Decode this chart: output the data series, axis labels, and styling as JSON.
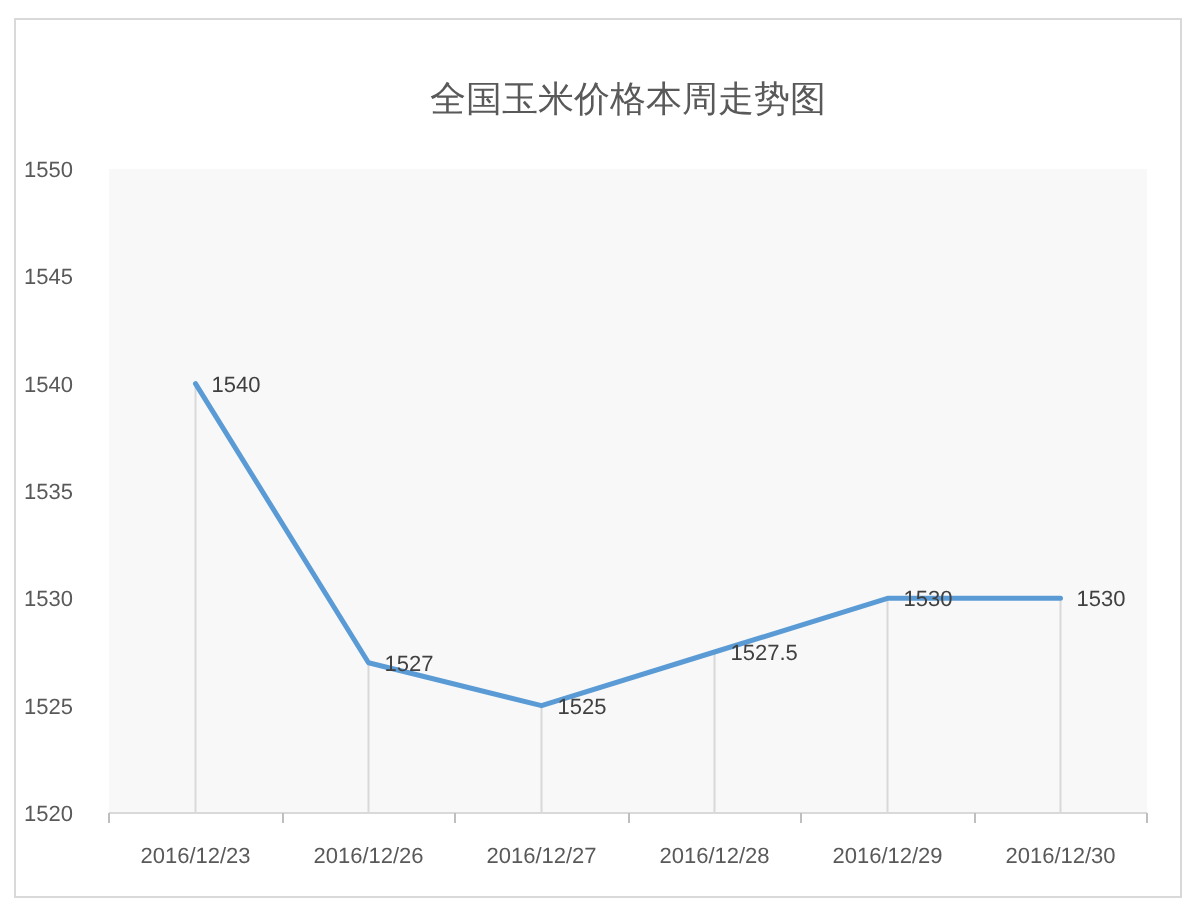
{
  "chart_data": {
    "type": "line",
    "title": "全国玉米价格本周走势图",
    "categories": [
      "2016/12/23",
      "2016/12/26",
      "2016/12/27",
      "2016/12/28",
      "2016/12/29",
      "2016/12/30"
    ],
    "series": [
      {
        "color": "#5b9bd5",
        "values": [
          1540,
          1527,
          1525,
          1527.5,
          1530,
          1530
        ]
      }
    ],
    "ylim": [
      1520,
      1550
    ],
    "yticks": [
      1520,
      1525,
      1530,
      1535,
      1540,
      1545,
      1550
    ],
    "data_labels": true
  }
}
